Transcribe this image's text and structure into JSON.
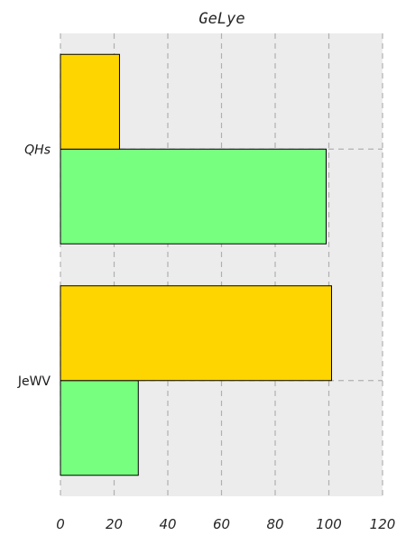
{
  "chart_data": {
    "type": "bar",
    "orientation": "horizontal",
    "title": "GeLye",
    "xlabel": "",
    "ylabel": "",
    "categories": [
      "JeWV",
      "QHs"
    ],
    "series": [
      {
        "values": [
          29,
          99
        ],
        "color": "#77ff80"
      },
      {
        "values": [
          101,
          22
        ],
        "color": "#ffd500"
      }
    ],
    "xlim": [
      0,
      120
    ],
    "xticks": [
      "0",
      "20",
      "40",
      "60",
      "80",
      "100",
      "120"
    ],
    "grid": true,
    "background": "#ececec",
    "grid_color": "#b0b0b0"
  }
}
